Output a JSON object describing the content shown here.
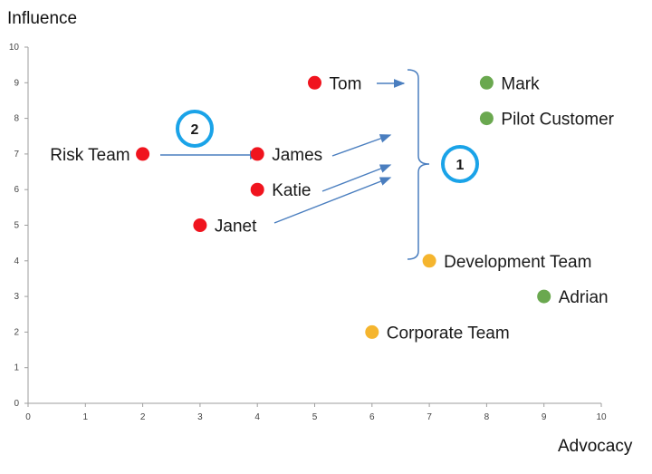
{
  "colors": {
    "high_risk": "#f0141e",
    "neutral": "#f5b52e",
    "advocate": "#6aa84f",
    "arrow": "#4a7ebf",
    "badge": "#1aa3e8",
    "axis": "#9e9e9e"
  },
  "chart_data": {
    "type": "scatter",
    "xlabel": "Advocacy",
    "ylabel": "Influence",
    "xlim": [
      0,
      10
    ],
    "ylim": [
      0,
      10
    ],
    "x_ticks": [
      "0",
      "1",
      "2",
      "3",
      "4",
      "5",
      "6",
      "7",
      "8",
      "9",
      "10"
    ],
    "y_ticks": [
      "0",
      "1",
      "2",
      "3",
      "4",
      "5",
      "6",
      "7",
      "8",
      "9",
      "10"
    ],
    "grid": false,
    "points": [
      {
        "label": "Tom",
        "x": 5,
        "y": 9,
        "color": "high_risk"
      },
      {
        "label": "Risk Team",
        "x": 2,
        "y": 7,
        "color": "high_risk"
      },
      {
        "label": "James",
        "x": 4,
        "y": 7,
        "color": "high_risk"
      },
      {
        "label": "Katie",
        "x": 4,
        "y": 6,
        "color": "high_risk"
      },
      {
        "label": "Janet",
        "x": 3,
        "y": 5,
        "color": "high_risk"
      },
      {
        "label": "Mark",
        "x": 8,
        "y": 9,
        "color": "advocate"
      },
      {
        "label": "Pilot Customer",
        "x": 8,
        "y": 8,
        "color": "advocate"
      },
      {
        "label": "Development Team",
        "x": 7,
        "y": 4,
        "color": "neutral"
      },
      {
        "label": "Adrian",
        "x": 9,
        "y": 3,
        "color": "advocate"
      },
      {
        "label": "Corporate Team",
        "x": 6,
        "y": 2,
        "color": "neutral"
      }
    ],
    "annotations": {
      "badges": [
        "1",
        "2"
      ]
    }
  }
}
